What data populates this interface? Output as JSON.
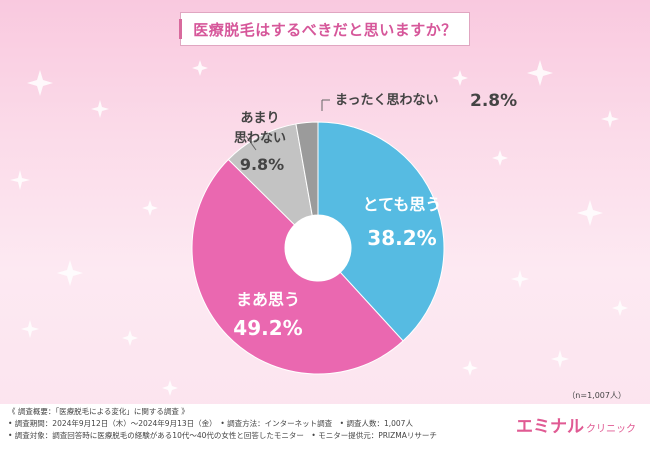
{
  "title": "医療脱毛はするべきだと思いますか？",
  "chart_data": {
    "type": "pie",
    "donut": true,
    "start_angle_deg": 0,
    "direction": "clockwise",
    "slices": [
      {
        "label": "とても思う",
        "value": 38.2,
        "color": "#56bbe2",
        "label_style": "white"
      },
      {
        "label": "まあ思う",
        "value": 49.2,
        "color": "#ea68b0",
        "label_style": "white"
      },
      {
        "label": "あまり思わない",
        "value": 9.8,
        "color": "#c3c3c3",
        "label_style": "dark"
      },
      {
        "label": "まったく思わない",
        "value": 2.8,
        "color": "#9b9b9b",
        "label_style": "dark"
      }
    ],
    "label_text": {
      "very": "とても思う",
      "very_value": "38.2%",
      "some": "まあ思う",
      "some_value": "49.2%",
      "not_much_1": "あまり",
      "not_much_2": "思わない",
      "not_much_value": "9.8%",
      "not_at_all": "まったく思わない",
      "not_at_all_value": "2.8%"
    }
  },
  "sample_size": "（n=1,007人）",
  "footer": {
    "line1": "《 調査概要：「医療脱毛による変化」に関する調査 》",
    "line2": "• 調査期間：2024年9月12日（木）～2024年9月13日（金）　• 調査方法：インターネット調査　• 調査人数：1,007人",
    "line3": "• 調査対象：調査回答時に医療脱毛の経験がある10代～40代の女性と回答したモニター　• モニター提供元：PRIZMAリサーチ"
  },
  "brand": {
    "name": "エミナル",
    "sub": "クリニック"
  }
}
